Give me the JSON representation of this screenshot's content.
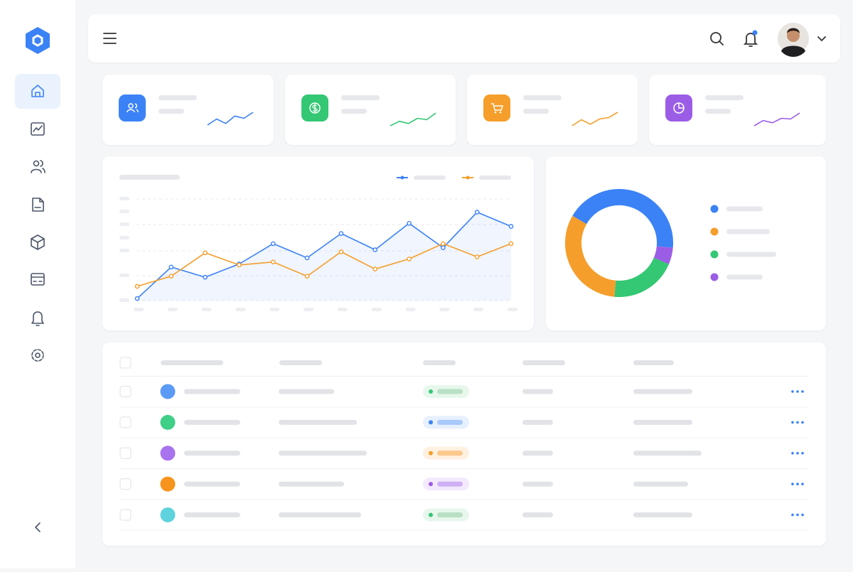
{
  "chart_data": [
    {
      "type": "line",
      "ylim": [
        0,
        100
      ],
      "series": [
        {
          "color": "#3b82f6",
          "values": [
            2,
            33,
            23,
            36,
            56,
            42,
            66,
            50,
            76,
            52,
            87,
            73
          ]
        },
        {
          "color": "#f59e2b",
          "values": [
            14,
            24,
            47,
            35,
            38,
            24,
            48,
            31,
            41,
            56,
            43,
            56
          ]
        }
      ]
    },
    {
      "type": "pie",
      "series": [
        {
          "color": "#3b82f6",
          "values": [
            43
          ]
        },
        {
          "color": "#f59e2b",
          "values": [
            32
          ]
        },
        {
          "color": "#34c774",
          "values": [
            20
          ]
        },
        {
          "color": "#9b5de5",
          "values": [
            5
          ]
        }
      ]
    },
    {
      "type": "line",
      "ylim": [
        0,
        100
      ],
      "series": [
        {
          "color": "#3b82f6",
          "values": [
            10,
            50,
            20,
            70,
            55,
            95
          ]
        }
      ]
    },
    {
      "type": "line",
      "ylim": [
        0,
        100
      ],
      "series": [
        {
          "color": "#34c774",
          "values": [
            5,
            35,
            20,
            55,
            45,
            90
          ]
        }
      ]
    },
    {
      "type": "line",
      "ylim": [
        0,
        100
      ],
      "series": [
        {
          "color": "#f59e2b",
          "values": [
            5,
            45,
            15,
            50,
            60,
            95
          ]
        }
      ]
    },
    {
      "type": "line",
      "ylim": [
        0,
        100
      ],
      "series": [
        {
          "color": "#9b5de5",
          "values": [
            5,
            40,
            25,
            55,
            50,
            90
          ]
        }
      ]
    }
  ]
}
